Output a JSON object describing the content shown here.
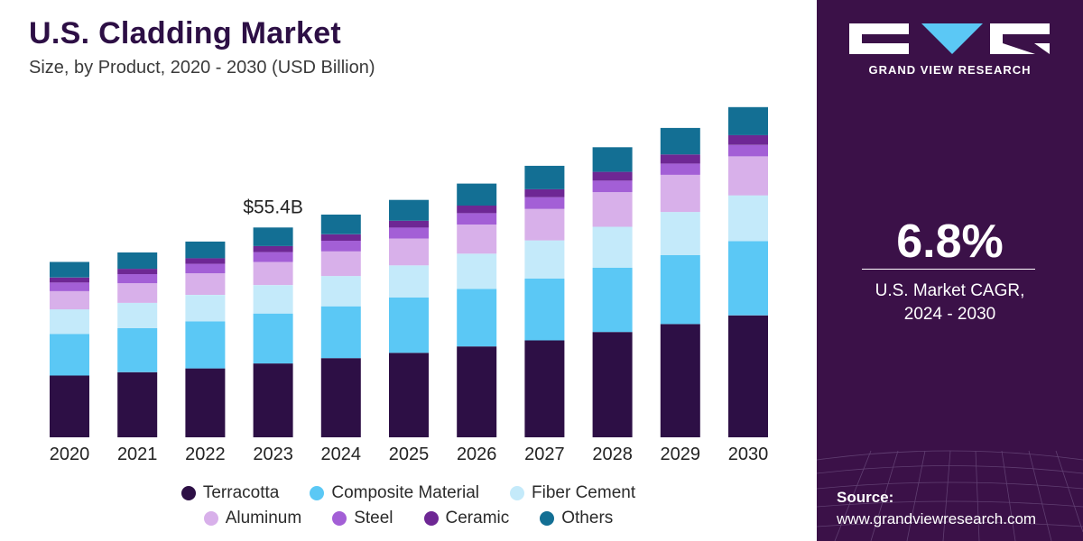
{
  "header": {
    "title": "U.S. Cladding Market",
    "subtitle": "Size, by Product, 2020 - 2030 (USD Billion)"
  },
  "brand": {
    "name": "GRAND VIEW RESEARCH"
  },
  "stats": {
    "cagr": "6.8%",
    "cagr_label_line1": "U.S. Market CAGR,",
    "cagr_label_line2": "2024 - 2030"
  },
  "source": {
    "label": "Source:",
    "url": "www.grandviewresearch.com"
  },
  "colors": {
    "Terracotta": "#2d0f45",
    "Composite Material": "#5bc8f5",
    "Fiber Cement": "#c4eafa",
    "Aluminum": "#d8b0ea",
    "Steel": "#a35fd6",
    "Ceramic": "#6e2794",
    "Others": "#136f94"
  },
  "chart_data": {
    "type": "bar",
    "stacked": true,
    "title": "U.S. Cladding Market",
    "subtitle": "Size, by Product, 2020 - 2030 (USD Billion)",
    "categories": [
      "2020",
      "2021",
      "2022",
      "2023",
      "2024",
      "2025",
      "2026",
      "2027",
      "2028",
      "2029",
      "2030"
    ],
    "annotation": {
      "category": "2023",
      "text": "$55.4B"
    },
    "total_2023": 55.4,
    "series": [
      {
        "name": "Terracotta",
        "values": [
          16.3,
          17.2,
          18.2,
          19.5,
          20.9,
          22.3,
          24.0,
          25.6,
          27.8,
          29.9,
          32.2
        ]
      },
      {
        "name": "Composite Material",
        "values": [
          11.0,
          11.6,
          12.4,
          13.2,
          13.7,
          14.6,
          15.2,
          16.3,
          17.0,
          18.2,
          19.6
        ]
      },
      {
        "name": "Fiber Cement",
        "values": [
          6.5,
          6.7,
          7.0,
          7.5,
          8.0,
          8.5,
          9.3,
          10.1,
          10.8,
          11.4,
          12.1
        ]
      },
      {
        "name": "Aluminum",
        "values": [
          4.8,
          5.2,
          5.7,
          6.1,
          6.5,
          7.1,
          7.7,
          8.3,
          9.1,
          9.8,
          10.3
        ]
      },
      {
        "name": "Steel",
        "values": [
          2.3,
          2.4,
          2.5,
          2.6,
          2.8,
          2.9,
          3.0,
          3.1,
          3.1,
          3.0,
          3.0
        ]
      },
      {
        "name": "Ceramic",
        "values": [
          1.3,
          1.4,
          1.5,
          1.6,
          1.7,
          1.8,
          2.0,
          2.1,
          2.3,
          2.4,
          2.6
        ]
      },
      {
        "name": "Others",
        "values": [
          4.1,
          4.3,
          4.4,
          4.9,
          5.2,
          5.5,
          5.8,
          6.2,
          6.5,
          7.0,
          7.4
        ]
      }
    ],
    "ylim": [
      0,
      90
    ],
    "legend": [
      "Terracotta",
      "Composite Material",
      "Fiber Cement",
      "Aluminum",
      "Steel",
      "Ceramic",
      "Others"
    ]
  }
}
